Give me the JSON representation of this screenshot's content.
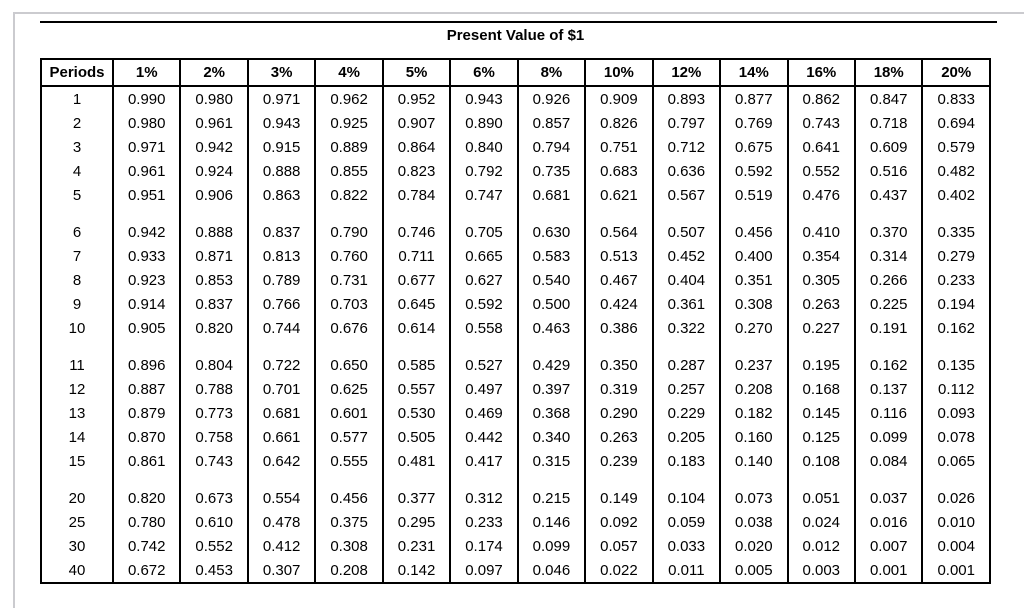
{
  "page": {
    "title": "Present Value of $1"
  },
  "colors": {
    "background": "#ffffff",
    "text": "#000000",
    "table_border": "#000000",
    "page_frame": "#cbcbcf"
  },
  "table": {
    "header": [
      "Periods",
      "1%",
      "2%",
      "3%",
      "4%",
      "5%",
      "6%",
      "8%",
      "10%",
      "12%",
      "14%",
      "16%",
      "18%",
      "20%"
    ],
    "row_groups": [
      [
        [
          "1",
          "0.990",
          "0.980",
          "0.971",
          "0.962",
          "0.952",
          "0.943",
          "0.926",
          "0.909",
          "0.893",
          "0.877",
          "0.862",
          "0.847",
          "0.833"
        ],
        [
          "2",
          "0.980",
          "0.961",
          "0.943",
          "0.925",
          "0.907",
          "0.890",
          "0.857",
          "0.826",
          "0.797",
          "0.769",
          "0.743",
          "0.718",
          "0.694"
        ],
        [
          "3",
          "0.971",
          "0.942",
          "0.915",
          "0.889",
          "0.864",
          "0.840",
          "0.794",
          "0.751",
          "0.712",
          "0.675",
          "0.641",
          "0.609",
          "0.579"
        ],
        [
          "4",
          "0.961",
          "0.924",
          "0.888",
          "0.855",
          "0.823",
          "0.792",
          "0.735",
          "0.683",
          "0.636",
          "0.592",
          "0.552",
          "0.516",
          "0.482"
        ],
        [
          "5",
          "0.951",
          "0.906",
          "0.863",
          "0.822",
          "0.784",
          "0.747",
          "0.681",
          "0.621",
          "0.567",
          "0.519",
          "0.476",
          "0.437",
          "0.402"
        ]
      ],
      [
        [
          "6",
          "0.942",
          "0.888",
          "0.837",
          "0.790",
          "0.746",
          "0.705",
          "0.630",
          "0.564",
          "0.507",
          "0.456",
          "0.410",
          "0.370",
          "0.335"
        ],
        [
          "7",
          "0.933",
          "0.871",
          "0.813",
          "0.760",
          "0.711",
          "0.665",
          "0.583",
          "0.513",
          "0.452",
          "0.400",
          "0.354",
          "0.314",
          "0.279"
        ],
        [
          "8",
          "0.923",
          "0.853",
          "0.789",
          "0.731",
          "0.677",
          "0.627",
          "0.540",
          "0.467",
          "0.404",
          "0.351",
          "0.305",
          "0.266",
          "0.233"
        ],
        [
          "9",
          "0.914",
          "0.837",
          "0.766",
          "0.703",
          "0.645",
          "0.592",
          "0.500",
          "0.424",
          "0.361",
          "0.308",
          "0.263",
          "0.225",
          "0.194"
        ],
        [
          "10",
          "0.905",
          "0.820",
          "0.744",
          "0.676",
          "0.614",
          "0.558",
          "0.463",
          "0.386",
          "0.322",
          "0.270",
          "0.227",
          "0.191",
          "0.162"
        ]
      ],
      [
        [
          "11",
          "0.896",
          "0.804",
          "0.722",
          "0.650",
          "0.585",
          "0.527",
          "0.429",
          "0.350",
          "0.287",
          "0.237",
          "0.195",
          "0.162",
          "0.135"
        ],
        [
          "12",
          "0.887",
          "0.788",
          "0.701",
          "0.625",
          "0.557",
          "0.497",
          "0.397",
          "0.319",
          "0.257",
          "0.208",
          "0.168",
          "0.137",
          "0.112"
        ],
        [
          "13",
          "0.879",
          "0.773",
          "0.681",
          "0.601",
          "0.530",
          "0.469",
          "0.368",
          "0.290",
          "0.229",
          "0.182",
          "0.145",
          "0.116",
          "0.093"
        ],
        [
          "14",
          "0.870",
          "0.758",
          "0.661",
          "0.577",
          "0.505",
          "0.442",
          "0.340",
          "0.263",
          "0.205",
          "0.160",
          "0.125",
          "0.099",
          "0.078"
        ],
        [
          "15",
          "0.861",
          "0.743",
          "0.642",
          "0.555",
          "0.481",
          "0.417",
          "0.315",
          "0.239",
          "0.183",
          "0.140",
          "0.108",
          "0.084",
          "0.065"
        ]
      ],
      [
        [
          "20",
          "0.820",
          "0.673",
          "0.554",
          "0.456",
          "0.377",
          "0.312",
          "0.215",
          "0.149",
          "0.104",
          "0.073",
          "0.051",
          "0.037",
          "0.026"
        ],
        [
          "25",
          "0.780",
          "0.610",
          "0.478",
          "0.375",
          "0.295",
          "0.233",
          "0.146",
          "0.092",
          "0.059",
          "0.038",
          "0.024",
          "0.016",
          "0.010"
        ],
        [
          "30",
          "0.742",
          "0.552",
          "0.412",
          "0.308",
          "0.231",
          "0.174",
          "0.099",
          "0.057",
          "0.033",
          "0.020",
          "0.012",
          "0.007",
          "0.004"
        ],
        [
          "40",
          "0.672",
          "0.453",
          "0.307",
          "0.208",
          "0.142",
          "0.097",
          "0.046",
          "0.022",
          "0.011",
          "0.005",
          "0.003",
          "0.001",
          "0.001"
        ]
      ]
    ]
  }
}
